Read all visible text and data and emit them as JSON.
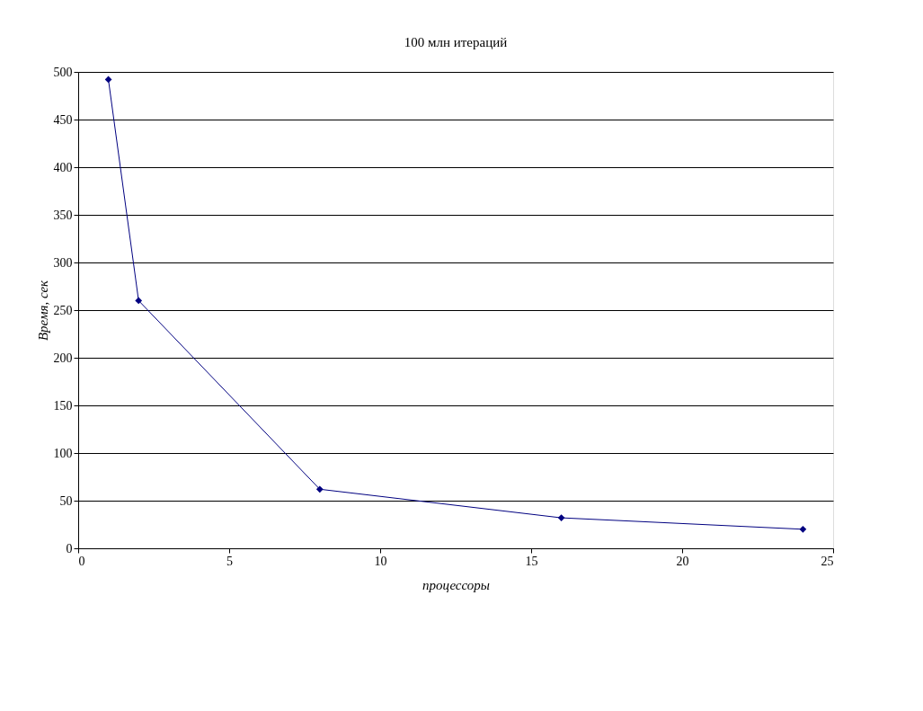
{
  "chart_data": {
    "type": "line",
    "title": "100 млн итераций",
    "xlabel": "процессоры",
    "ylabel": "Время, сек",
    "x": [
      1,
      2,
      8,
      16,
      24
    ],
    "series": [
      {
        "color": "#000080",
        "values": [
          492,
          260,
          62,
          32,
          20
        ]
      }
    ],
    "xlim": [
      0,
      25
    ],
    "xticks": [
      0,
      5,
      10,
      15,
      20,
      25
    ],
    "ylim": [
      0,
      500
    ],
    "yticks": [
      0,
      50,
      100,
      150,
      200,
      250,
      300,
      350,
      400,
      450,
      500
    ],
    "grid": "y",
    "marker": "diamond",
    "line_style": "solid"
  }
}
